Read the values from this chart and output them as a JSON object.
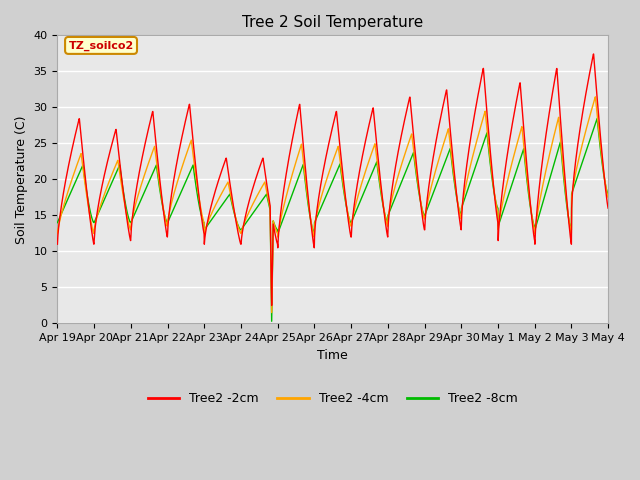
{
  "title": "Tree 2 Soil Temperature",
  "xlabel": "Time",
  "ylabel": "Soil Temperature (C)",
  "ylim": [
    0,
    40
  ],
  "line_colors": {
    "2cm": "#ff0000",
    "4cm": "#ffa500",
    "8cm": "#00bb00"
  },
  "legend_labels": [
    "Tree2 -2cm",
    "Tree2 -4cm",
    "Tree2 -8cm"
  ],
  "legend_colors": [
    "#ff0000",
    "#ffa500",
    "#00bb00"
  ],
  "day_labels": [
    "Apr 19",
    "Apr 20",
    "Apr 21",
    "Apr 22",
    "Apr 23",
    "Apr 24",
    "Apr 25",
    "Apr 26",
    "Apr 27",
    "Apr 28",
    "Apr 29",
    "Apr 30",
    "May 1",
    "May 2",
    "May 3",
    "May 4"
  ],
  "annotation_text": "TZ_soilco2",
  "annotation_bg": "#ffffcc",
  "annotation_border": "#cc8800",
  "plot_bg_color": "#e8e8e8",
  "fig_bg_color": "#d0d0d0",
  "grid_color": "#ffffff",
  "title_fontsize": 11,
  "axis_label_fontsize": 9,
  "tick_fontsize": 8,
  "days": 15,
  "day_peaks_2cm": [
    28.5,
    27.0,
    29.5,
    30.5,
    23.0,
    23.0,
    30.5,
    29.5,
    30.0,
    31.5,
    32.5,
    35.5,
    33.5,
    35.5,
    37.5
  ],
  "day_troughs_2cm": [
    11.0,
    11.5,
    12.0,
    12.5,
    11.0,
    11.0,
    10.5,
    12.0,
    12.0,
    13.0,
    13.0,
    14.0,
    11.5,
    11.0,
    16.0
  ],
  "anomaly_day": 5,
  "anomaly_green_min": 0.2,
  "anomaly_red_min": 2.5,
  "anomaly_orange_min": 1.5
}
